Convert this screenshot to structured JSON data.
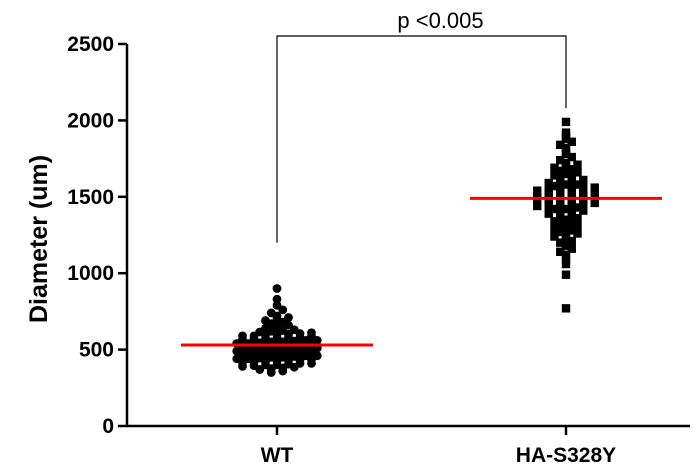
{
  "chart_data": {
    "type": "scatter",
    "ylabel": "Diameter (um)",
    "ylim": [
      0,
      2500
    ],
    "yticks": [
      0,
      500,
      1000,
      1500,
      2000,
      2500
    ],
    "categories": [
      "WT",
      "HA-S328Y"
    ],
    "annotation": "p <0.005",
    "legend": "none",
    "grid": false,
    "mean_line_color": "#ff0000",
    "series": [
      {
        "category": "WT",
        "marker": "circle",
        "mean": 530,
        "values": [
          350,
          360,
          370,
          375,
          380,
          385,
          390,
          395,
          400,
          400,
          405,
          410,
          410,
          415,
          420,
          420,
          425,
          430,
          430,
          435,
          440,
          440,
          445,
          450,
          450,
          455,
          460,
          460,
          465,
          470,
          470,
          475,
          480,
          480,
          485,
          490,
          490,
          495,
          500,
          500,
          505,
          510,
          510,
          515,
          520,
          520,
          525,
          530,
          530,
          535,
          540,
          540,
          545,
          550,
          550,
          555,
          560,
          560,
          565,
          570,
          570,
          575,
          580,
          580,
          585,
          590,
          590,
          595,
          600,
          600,
          605,
          610,
          615,
          620,
          625,
          630,
          640,
          650,
          660,
          670,
          680,
          690,
          700,
          710,
          720,
          740,
          760,
          790,
          830,
          900
        ]
      },
      {
        "category": "HA-S328Y",
        "marker": "square",
        "mean": 1490,
        "values": [
          770,
          990,
          1060,
          1090,
          1120,
          1140,
          1160,
          1180,
          1200,
          1210,
          1230,
          1240,
          1250,
          1260,
          1270,
          1280,
          1290,
          1300,
          1310,
          1320,
          1330,
          1340,
          1350,
          1360,
          1370,
          1380,
          1390,
          1400,
          1400,
          1410,
          1420,
          1420,
          1430,
          1440,
          1440,
          1450,
          1450,
          1460,
          1460,
          1470,
          1470,
          1480,
          1480,
          1490,
          1490,
          1500,
          1500,
          1510,
          1510,
          1520,
          1520,
          1530,
          1530,
          1540,
          1540,
          1550,
          1550,
          1560,
          1560,
          1570,
          1580,
          1580,
          1590,
          1600,
          1600,
          1610,
          1620,
          1630,
          1640,
          1650,
          1660,
          1670,
          1680,
          1690,
          1700,
          1710,
          1720,
          1740,
          1760,
          1780,
          1800,
          1820,
          1840,
          1860,
          1880,
          1900,
          1920,
          1990
        ]
      }
    ]
  }
}
